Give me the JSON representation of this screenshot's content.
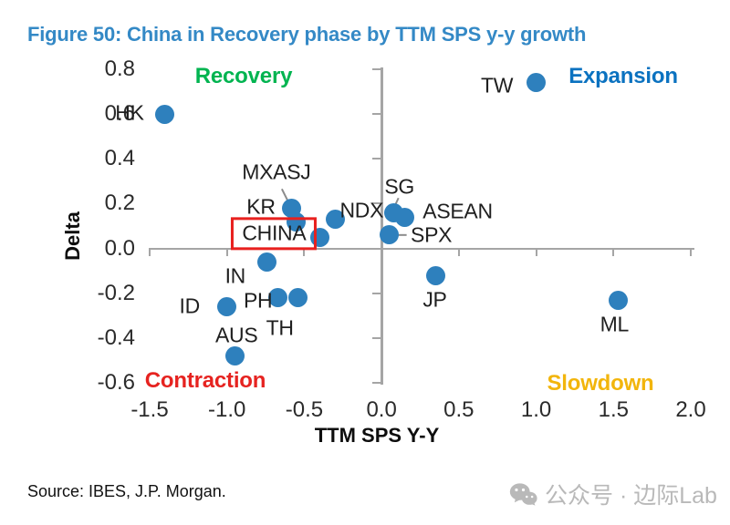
{
  "title": "Figure 50: China in Recovery phase by TTM SPS y-y growth",
  "source": "Source: IBES, J.P. Morgan.",
  "watermark": {
    "icon": "wechat-icon",
    "text": "公众号 · 边际Lab"
  },
  "chart_data": {
    "type": "scatter",
    "title": "Figure 50: China in Recovery phase by TTM SPS y-y growth",
    "xlabel": "TTM SPS Y-Y",
    "ylabel": "Delta",
    "xlim": [
      -1.5,
      2.0
    ],
    "ylim": [
      -0.6,
      0.8
    ],
    "x_ticks": [
      -1.5,
      -1.0,
      -0.5,
      0.0,
      0.5,
      1.0,
      1.5,
      2.0
    ],
    "y_ticks": [
      0.8,
      0.6,
      0.4,
      0.2,
      0.0,
      -0.2,
      -0.4,
      -0.6
    ],
    "grid": false,
    "legend": "none",
    "marker_color": "#2e80bd",
    "axis_color": "#a5a5a5",
    "callout_color": "#8c8c8c",
    "highlight_box": {
      "label": "CHINA",
      "color": "#e8201e"
    },
    "points": [
      {
        "label": "HK",
        "x": -1.4,
        "y": 0.6,
        "label_offset": [
          -39,
          -1
        ]
      },
      {
        "label": "TW",
        "x": 1.0,
        "y": 0.74,
        "label_offset": [
          -43,
          3
        ]
      },
      {
        "label": "MXASJ",
        "x": -0.58,
        "y": 0.18,
        "label_offset": [
          -17,
          -39
        ],
        "callout": [
          -11,
          -21,
          -2,
          -3
        ]
      },
      {
        "label": "KR",
        "x": -0.55,
        "y": 0.12,
        "label_offset": [
          -39,
          -16
        ]
      },
      {
        "label": "CHINA",
        "x": -0.4,
        "y": 0.05,
        "label_offset": [
          -50,
          -4
        ],
        "boxed": true
      },
      {
        "label": "NDX",
        "x": -0.3,
        "y": 0.13,
        "label_offset": [
          29,
          -10
        ]
      },
      {
        "label": "SG",
        "x": 0.08,
        "y": 0.16,
        "label_offset": [
          6,
          -28
        ],
        "callout": [
          5,
          -16,
          -2,
          -1
        ]
      },
      {
        "label": "ASEAN",
        "x": 0.15,
        "y": 0.14,
        "label_offset": [
          58,
          -6
        ]
      },
      {
        "label": "SPX",
        "x": 0.05,
        "y": 0.06,
        "label_offset": [
          46,
          0
        ],
        "callout": [
          5,
          0,
          19,
          0
        ]
      },
      {
        "label": "IN",
        "x": -0.74,
        "y": -0.06,
        "label_offset": [
          -35,
          16
        ]
      },
      {
        "label": "ID",
        "x": -1.0,
        "y": -0.26,
        "label_offset": [
          -41,
          0
        ]
      },
      {
        "label": "PH",
        "x": -0.67,
        "y": -0.22,
        "label_offset": [
          -22,
          3
        ]
      },
      {
        "label": "TH",
        "x": -0.54,
        "y": -0.22,
        "label_offset": [
          -20,
          33
        ]
      },
      {
        "label": "AUS",
        "x": -0.95,
        "y": -0.48,
        "label_offset": [
          2,
          -23
        ]
      },
      {
        "label": "JP",
        "x": 0.35,
        "y": -0.12,
        "label_offset": [
          -1,
          27
        ]
      },
      {
        "label": "ML",
        "x": 1.53,
        "y": -0.23,
        "label_offset": [
          -4,
          27
        ]
      }
    ],
    "quadrants": [
      {
        "label": "Recovery",
        "color": "#00b450",
        "position": "top-left"
      },
      {
        "label": "Expansion",
        "color": "#0b72c0",
        "position": "top-right"
      },
      {
        "label": "Contraction",
        "color": "#e62320",
        "position": "bottom-left"
      },
      {
        "label": "Slowdown",
        "color": "#f2b50c",
        "position": "bottom-right"
      }
    ]
  }
}
